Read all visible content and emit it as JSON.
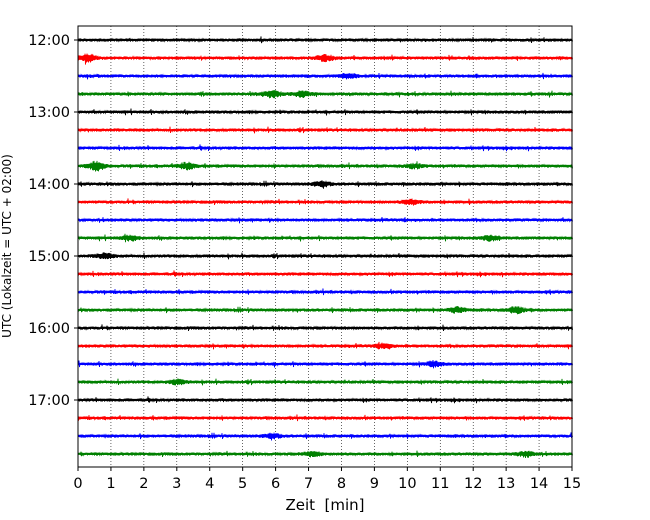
{
  "chart_data": {
    "type": "line",
    "title": "",
    "xlabel": "Zeit  [min]",
    "ylabel": "UTC (Lokalzeit = UTC + 02:00)",
    "xlim": [
      0,
      15
    ],
    "x_ticks": [
      0,
      1,
      2,
      3,
      4,
      5,
      6,
      7,
      8,
      9,
      10,
      11,
      12,
      13,
      14,
      15
    ],
    "x_tick_labels": [
      "0",
      "1",
      "2",
      "3",
      "4",
      "5",
      "6",
      "7",
      "8",
      "9",
      "10",
      "11",
      "12",
      "13",
      "14",
      "15"
    ],
    "y_tick_labels": [
      "12:00",
      "13:00",
      "14:00",
      "15:00",
      "16:00",
      "17:00"
    ],
    "x_grid": true,
    "grid_style": "dotted",
    "line_colors": [
      "#000000",
      "#ff0000",
      "#0000ff",
      "#008000"
    ],
    "series": [
      {
        "start": "12:00",
        "color": "#000000",
        "bursts": []
      },
      {
        "start": "12:15",
        "color": "#ff0000",
        "bursts": [
          {
            "x": 0.3,
            "amp": 2.2
          },
          {
            "x": 7.5,
            "amp": 1.8
          }
        ]
      },
      {
        "start": "12:30",
        "color": "#0000ff",
        "bursts": [
          {
            "x": 8.2,
            "amp": 1.4
          }
        ]
      },
      {
        "start": "12:45",
        "color": "#008000",
        "bursts": [
          {
            "x": 5.9,
            "amp": 2.0
          },
          {
            "x": 6.8,
            "amp": 1.6
          }
        ]
      },
      {
        "start": "13:00",
        "color": "#000000",
        "bursts": []
      },
      {
        "start": "13:15",
        "color": "#ff0000",
        "bursts": []
      },
      {
        "start": "13:30",
        "color": "#0000ff",
        "bursts": []
      },
      {
        "start": "13:45",
        "color": "#008000",
        "bursts": [
          {
            "x": 0.55,
            "amp": 2.6
          },
          {
            "x": 3.3,
            "amp": 1.8
          },
          {
            "x": 10.2,
            "amp": 1.2
          }
        ]
      },
      {
        "start": "14:00",
        "color": "#000000",
        "bursts": [
          {
            "x": 7.4,
            "amp": 1.5
          }
        ]
      },
      {
        "start": "14:15",
        "color": "#ff0000",
        "bursts": [
          {
            "x": 10.1,
            "amp": 1.4
          }
        ]
      },
      {
        "start": "14:30",
        "color": "#0000ff",
        "bursts": []
      },
      {
        "start": "14:45",
        "color": "#008000",
        "bursts": [
          {
            "x": 1.6,
            "amp": 1.3
          },
          {
            "x": 12.5,
            "amp": 1.4
          }
        ]
      },
      {
        "start": "15:00",
        "color": "#000000",
        "bursts": [
          {
            "x": 0.8,
            "amp": 1.4
          }
        ]
      },
      {
        "start": "15:15",
        "color": "#ff0000",
        "bursts": []
      },
      {
        "start": "15:30",
        "color": "#0000ff",
        "bursts": []
      },
      {
        "start": "15:45",
        "color": "#008000",
        "bursts": [
          {
            "x": 11.5,
            "amp": 1.5
          },
          {
            "x": 13.3,
            "amp": 1.7
          }
        ]
      },
      {
        "start": "16:00",
        "color": "#000000",
        "bursts": []
      },
      {
        "start": "16:15",
        "color": "#ff0000",
        "bursts": [
          {
            "x": 9.3,
            "amp": 1.4
          }
        ]
      },
      {
        "start": "16:30",
        "color": "#0000ff",
        "bursts": [
          {
            "x": 10.8,
            "amp": 1.3
          }
        ]
      },
      {
        "start": "16:45",
        "color": "#008000",
        "bursts": [
          {
            "x": 3.0,
            "amp": 1.3
          }
        ]
      },
      {
        "start": "17:00",
        "color": "#000000",
        "bursts": []
      },
      {
        "start": "17:15",
        "color": "#ff0000",
        "bursts": []
      },
      {
        "start": "17:30",
        "color": "#0000ff",
        "bursts": [
          {
            "x": 5.9,
            "amp": 1.3
          }
        ]
      },
      {
        "start": "17:45",
        "color": "#008000",
        "bursts": [
          {
            "x": 7.1,
            "amp": 1.3
          },
          {
            "x": 13.6,
            "amp": 1.5
          }
        ]
      }
    ]
  }
}
